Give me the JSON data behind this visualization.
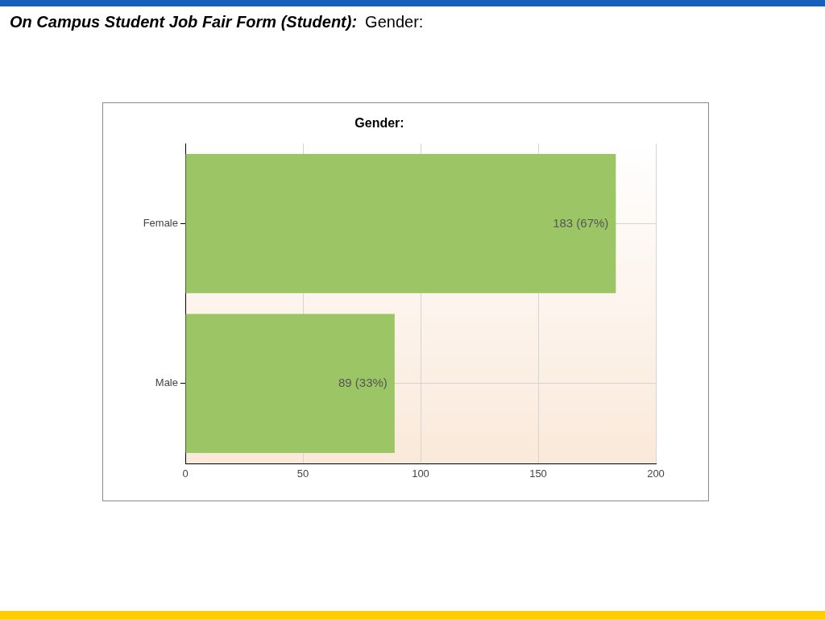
{
  "chart_data": {
    "type": "bar",
    "orientation": "horizontal",
    "title": "On Campus Student Job Fair Form (Student): Gender:",
    "subtitle": "Gender:",
    "categories": [
      "Female",
      "Male"
    ],
    "values": [
      183,
      89
    ],
    "value_labels": [
      "183 (67%)",
      "89 (33%)"
    ],
    "color": "#9cc665",
    "xlim": [
      0,
      200
    ],
    "xticks": [
      0,
      50,
      100,
      150,
      200
    ],
    "grid": true
  }
}
